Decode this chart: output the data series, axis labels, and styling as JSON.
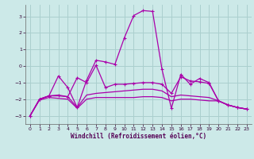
{
  "xlabel": "Windchill (Refroidissement éolien,°C)",
  "bg_color": "#cce9e8",
  "grid_color": "#aacfce",
  "line_color": "#aa00aa",
  "xlim": [
    -0.5,
    23.5
  ],
  "ylim": [
    -3.5,
    3.7
  ],
  "xticks": [
    0,
    1,
    2,
    3,
    4,
    5,
    6,
    7,
    8,
    9,
    10,
    11,
    12,
    13,
    14,
    15,
    16,
    17,
    18,
    19,
    20,
    21,
    22,
    23
  ],
  "yticks": [
    -3,
    -2,
    -1,
    0,
    1,
    2,
    3
  ],
  "series": [
    {
      "points": [
        [
          0,
          -3.0
        ],
        [
          1,
          -2.0
        ],
        [
          2,
          -1.8
        ],
        [
          3,
          -0.6
        ],
        [
          4,
          -1.3
        ],
        [
          5,
          -2.5
        ],
        [
          6,
          -0.85
        ],
        [
          7,
          0.35
        ],
        [
          8,
          0.25
        ],
        [
          9,
          0.1
        ],
        [
          10,
          1.7
        ],
        [
          11,
          3.05
        ],
        [
          12,
          3.35
        ],
        [
          13,
          3.3
        ],
        [
          14,
          -0.2
        ],
        [
          15,
          -2.55
        ],
        [
          16,
          -0.5
        ],
        [
          17,
          -1.1
        ],
        [
          18,
          -0.75
        ],
        [
          19,
          -1.0
        ],
        [
          20,
          -2.1
        ],
        [
          21,
          -2.35
        ],
        [
          22,
          -2.5
        ],
        [
          23,
          -2.6
        ]
      ],
      "marker": "+",
      "lw": 0.9
    },
    {
      "points": [
        [
          0,
          -3.0
        ],
        [
          1,
          -2.0
        ],
        [
          2,
          -1.8
        ],
        [
          3,
          -1.75
        ],
        [
          4,
          -1.85
        ],
        [
          5,
          -0.7
        ],
        [
          6,
          -1.0
        ],
        [
          7,
          0.05
        ],
        [
          8,
          -1.3
        ],
        [
          9,
          -1.1
        ],
        [
          10,
          -1.1
        ],
        [
          11,
          -1.05
        ],
        [
          12,
          -1.0
        ],
        [
          13,
          -1.0
        ],
        [
          14,
          -1.1
        ],
        [
          15,
          -1.65
        ],
        [
          16,
          -0.65
        ],
        [
          17,
          -0.9
        ],
        [
          18,
          -0.95
        ],
        [
          19,
          -1.05
        ],
        [
          20,
          -2.1
        ],
        [
          21,
          -2.35
        ],
        [
          22,
          -2.5
        ],
        [
          23,
          -2.6
        ]
      ],
      "marker": "+",
      "lw": 0.9
    },
    {
      "points": [
        [
          0,
          -3.0
        ],
        [
          1,
          -2.0
        ],
        [
          2,
          -1.8
        ],
        [
          3,
          -1.8
        ],
        [
          4,
          -1.85
        ],
        [
          5,
          -2.5
        ],
        [
          6,
          -1.75
        ],
        [
          7,
          -1.65
        ],
        [
          8,
          -1.6
        ],
        [
          9,
          -1.55
        ],
        [
          10,
          -1.5
        ],
        [
          11,
          -1.45
        ],
        [
          12,
          -1.4
        ],
        [
          13,
          -1.4
        ],
        [
          14,
          -1.5
        ],
        [
          15,
          -1.85
        ],
        [
          16,
          -1.75
        ],
        [
          17,
          -1.8
        ],
        [
          18,
          -1.85
        ],
        [
          19,
          -1.9
        ],
        [
          20,
          -2.1
        ],
        [
          21,
          -2.35
        ],
        [
          22,
          -2.5
        ],
        [
          23,
          -2.6
        ]
      ],
      "marker": null,
      "lw": 0.9
    },
    {
      "points": [
        [
          0,
          -3.0
        ],
        [
          1,
          -2.05
        ],
        [
          2,
          -1.9
        ],
        [
          3,
          -1.95
        ],
        [
          4,
          -2.0
        ],
        [
          5,
          -2.55
        ],
        [
          6,
          -2.0
        ],
        [
          7,
          -1.9
        ],
        [
          8,
          -1.9
        ],
        [
          9,
          -1.9
        ],
        [
          10,
          -1.9
        ],
        [
          11,
          -1.9
        ],
        [
          12,
          -1.85
        ],
        [
          13,
          -1.85
        ],
        [
          14,
          -1.9
        ],
        [
          15,
          -2.1
        ],
        [
          16,
          -2.0
        ],
        [
          17,
          -2.0
        ],
        [
          18,
          -2.05
        ],
        [
          19,
          -2.1
        ],
        [
          20,
          -2.1
        ],
        [
          21,
          -2.35
        ],
        [
          22,
          -2.5
        ],
        [
          23,
          -2.6
        ]
      ],
      "marker": null,
      "lw": 0.9
    }
  ]
}
